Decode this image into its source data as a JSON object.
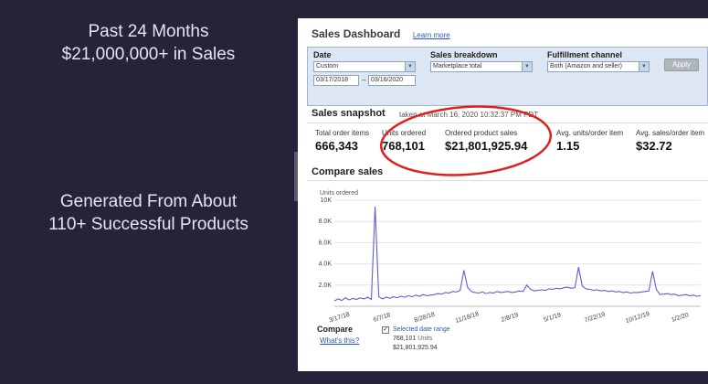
{
  "left_panel": {
    "top_line1": "Past 24 Months",
    "top_line2": "$21,000,000+ in Sales",
    "bottom_line1": "Generated From About",
    "bottom_line2": "110+ Successful Products"
  },
  "dashboard": {
    "title": "Sales Dashboard",
    "learn_more": "Learn more",
    "filters": {
      "date_label": "Date",
      "date_range_value": "Custom",
      "date_from": "03/17/2018",
      "date_separator": "–",
      "date_to": "03/16/2020",
      "breakdown_label": "Sales breakdown",
      "breakdown_value": "Marketplace total",
      "channel_label": "Fulfillment channel",
      "channel_value": "Both (Amazon and seller)",
      "apply_label": "Apply"
    },
    "snapshot": {
      "title": "Sales snapshot",
      "subtitle": "taken at March 16, 2020 10:32:37 PM PDT",
      "metrics": [
        {
          "label": "Total order items",
          "value": "666,343"
        },
        {
          "label": "Units ordered",
          "value": "768,101"
        },
        {
          "label": "Ordered product sales",
          "value": "$21,801,925.94"
        },
        {
          "label": "Avg. units/order item",
          "value": "1.15"
        },
        {
          "label": "Avg. sales/order item",
          "value": "$32.72"
        }
      ]
    },
    "compare": {
      "title": "Compare sales",
      "legend_title": "Compare",
      "whats_this": "What's this?",
      "checkbox_mark": "✓",
      "selected_range_label": "Selected date range",
      "units_value": "768,101",
      "units_word": "Units",
      "sales_value": "$21,801,925.94"
    }
  },
  "colors": {
    "background": "#26223a",
    "series": "#5b5fd6",
    "highlight_circle": "#e02020",
    "link": "#2f58b8"
  },
  "chart_data": {
    "type": "line",
    "ylabel": "Units ordered",
    "ylim": [
      0,
      10000
    ],
    "y_ticks": [
      {
        "value": 10000,
        "label": "10K"
      },
      {
        "value": 8000,
        "label": "8.0K"
      },
      {
        "value": 6000,
        "label": "6.0K"
      },
      {
        "value": 4000,
        "label": "4.0K"
      },
      {
        "value": 2000,
        "label": "2.0K"
      }
    ],
    "x_ticks": [
      "3/17/18",
      "6/7/18",
      "8/28/18",
      "11/18/18",
      "2/8/19",
      "5/1/19",
      "7/22/19",
      "10/12/19",
      "1/2/20"
    ],
    "series": [
      {
        "values": [
          500,
          700,
          550,
          800,
          600,
          750,
          650,
          800,
          700,
          850,
          650,
          9400,
          900,
          700,
          850,
          750,
          900,
          800,
          950,
          850,
          1000,
          900,
          1050,
          950,
          1100,
          1000,
          1050,
          1100,
          1200,
          1150,
          1300,
          1250,
          1400,
          1350,
          1500,
          3400,
          1800,
          1400,
          1300,
          1250,
          1350,
          1200,
          1300,
          1250,
          1400,
          1300,
          1350,
          1400,
          1300,
          1350,
          1450,
          1400,
          2000,
          1600,
          1450,
          1500,
          1550,
          1500,
          1650,
          1600,
          1700,
          1650,
          1750,
          1800,
          1700,
          1750,
          3700,
          1900,
          1650,
          1600,
          1500,
          1550,
          1450,
          1500,
          1400,
          1450,
          1350,
          1400,
          1300,
          1350,
          1250,
          1300,
          1300,
          1350,
          1400,
          1450,
          3300,
          1600,
          1100,
          1150,
          1200,
          1100,
          1150,
          1000,
          1050,
          1100,
          1000,
          1050,
          950,
          1000
        ]
      }
    ]
  }
}
